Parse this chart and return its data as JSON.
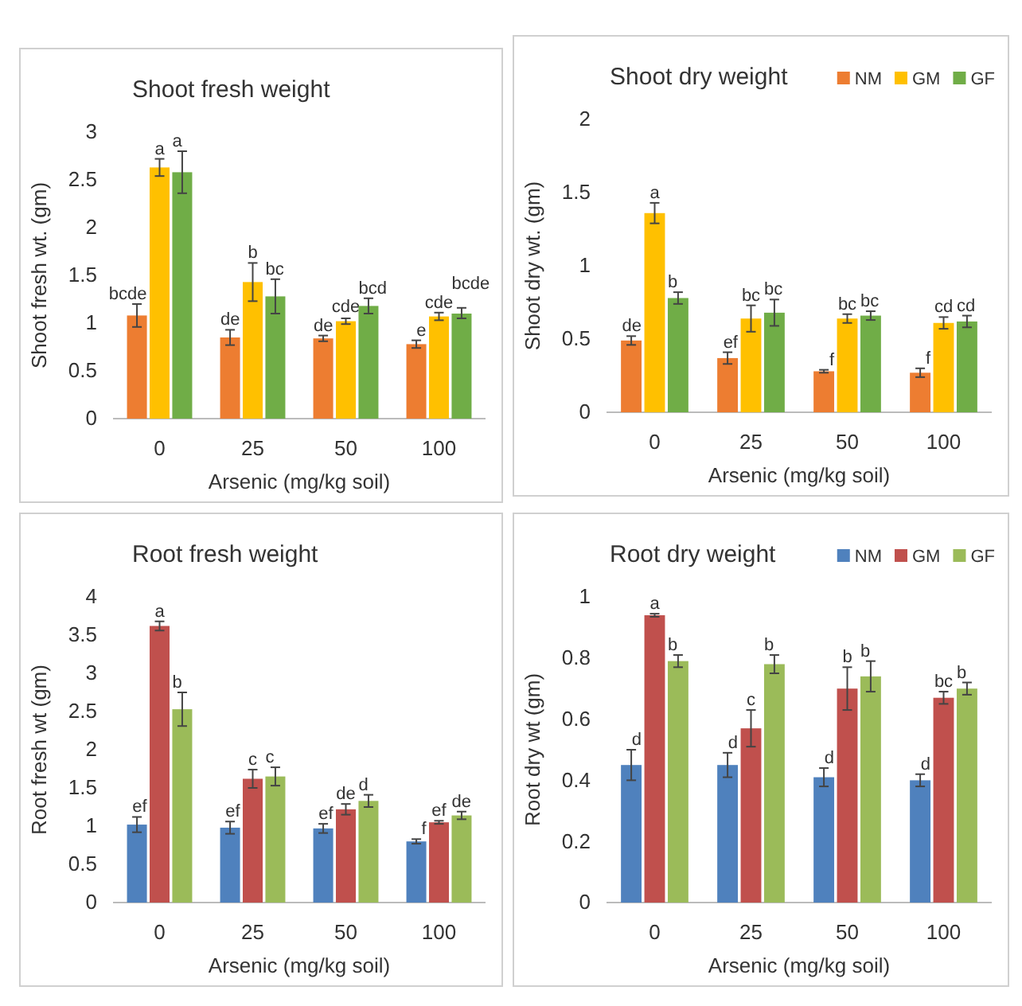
{
  "chart_data": [
    {
      "type": "bar",
      "title": "Shoot fresh weight",
      "xlabel": "Arsenic (mg/kg soil)",
      "ylabel": "Shoot fresh wt. (gm)",
      "categories": [
        "0",
        "25",
        "50",
        "100"
      ],
      "ylim": [
        0,
        3
      ],
      "yticks": [
        0,
        0.5,
        1,
        1.5,
        2,
        2.5,
        3
      ],
      "grid": false,
      "legend": false,
      "series": [
        {
          "color": "#ed7d31",
          "values": [
            1.08,
            0.85,
            0.84,
            0.78
          ],
          "errors": [
            0.12,
            0.08,
            0.03,
            0.04
          ],
          "value_labels": [
            "bcde",
            "de",
            "de",
            "e"
          ]
        },
        {
          "color": "#ffc000",
          "values": [
            2.63,
            1.43,
            1.02,
            1.07
          ],
          "errors": [
            0.09,
            0.2,
            0.03,
            0.04
          ],
          "value_labels": [
            "a",
            "b",
            "cde",
            "cde"
          ]
        },
        {
          "color": "#70ad47",
          "values": [
            2.58,
            1.28,
            1.18,
            1.1
          ],
          "errors": [
            0.22,
            0.18,
            0.08,
            [
              1.05,
              1.16
            ]
          ],
          "value_labels": [
            "a",
            "bc",
            "bcd",
            "bcde"
          ]
        }
      ]
    },
    {
      "type": "bar",
      "title": "Shoot dry weight",
      "xlabel": "Arsenic (mg/kg soil)",
      "ylabel": "Shoot dry wt. (gm)",
      "categories": [
        "0",
        "25",
        "50",
        "100"
      ],
      "ylim": [
        0,
        2
      ],
      "yticks": [
        0,
        0.5,
        1,
        1.5,
        2
      ],
      "grid": false,
      "legend": "top right",
      "series": [
        {
          "name": "NM",
          "color": "#ed7d31",
          "values": [
            0.49,
            0.37,
            0.28,
            0.27
          ],
          "errors": [
            0.03,
            0.04,
            0.01,
            0.03
          ],
          "value_labels": [
            "de",
            "ef",
            "f",
            "f"
          ]
        },
        {
          "name": "GM",
          "color": "#ffc000",
          "values": [
            1.36,
            0.64,
            0.64,
            0.61
          ],
          "errors": [
            0.07,
            0.09,
            0.03,
            0.04
          ],
          "value_labels": [
            "a",
            "bc",
            "bc",
            "cd"
          ]
        },
        {
          "name": "GF",
          "color": "#70ad47",
          "values": [
            0.78,
            0.68,
            0.66,
            0.62
          ],
          "errors": [
            0.04,
            0.09,
            0.03,
            0.04
          ],
          "value_labels": [
            "b",
            "bc",
            "bc",
            "cd"
          ]
        }
      ]
    },
    {
      "type": "bar",
      "title": "Root fresh weight",
      "xlabel": "Arsenic (mg/kg soil)",
      "ylabel": "Root fresh wt (gm)",
      "categories": [
        "0",
        "25",
        "50",
        "100"
      ],
      "ylim": [
        0,
        4
      ],
      "yticks": [
        0,
        0.5,
        1,
        1.5,
        2,
        2.5,
        3,
        3.5,
        4
      ],
      "grid": false,
      "legend": false,
      "series": [
        {
          "color": "#4f81bd",
          "values": [
            1.02,
            0.98,
            0.97,
            0.8
          ],
          "errors": [
            0.1,
            0.08,
            0.06,
            0.03
          ],
          "value_labels": [
            "ef",
            "ef",
            "ef",
            "f"
          ]
        },
        {
          "color": "#c0504d",
          "values": [
            3.62,
            1.62,
            1.22,
            1.05
          ],
          "errors": [
            0.06,
            0.12,
            0.07,
            0.02
          ],
          "value_labels": [
            "a",
            "c",
            "de",
            "ef"
          ]
        },
        {
          "color": "#9bbb59",
          "values": [
            2.53,
            1.65,
            1.33,
            1.14
          ],
          "errors": [
            0.22,
            0.12,
            0.08,
            0.05
          ],
          "value_labels": [
            "b",
            "c",
            "d",
            "de"
          ]
        }
      ]
    },
    {
      "type": "bar",
      "title": "Root dry weight",
      "xlabel": "Arsenic (mg/kg soil)",
      "ylabel": "Root dry wt (gm)",
      "categories": [
        "0",
        "25",
        "50",
        "100"
      ],
      "ylim": [
        0,
        1
      ],
      "yticks": [
        0,
        0.2,
        0.4,
        0.6,
        0.8,
        1
      ],
      "grid": false,
      "legend": "top right",
      "series": [
        {
          "name": "NM",
          "color": "#4f81bd",
          "values": [
            0.45,
            0.45,
            0.41,
            0.4
          ],
          "errors": [
            0.05,
            0.04,
            0.03,
            0.02
          ],
          "value_labels": [
            "d",
            "d",
            "d",
            "d"
          ]
        },
        {
          "name": "GM",
          "color": "#c0504d",
          "values": [
            0.94,
            0.57,
            0.7,
            0.67
          ],
          "errors": [
            0.005,
            0.06,
            0.07,
            0.02
          ],
          "value_labels": [
            "a",
            "c",
            "b",
            "bc"
          ]
        },
        {
          "name": "GF",
          "color": "#9bbb59",
          "values": [
            0.79,
            0.78,
            0.74,
            0.7
          ],
          "errors": [
            0.02,
            0.03,
            0.05,
            0.02
          ],
          "value_labels": [
            "b",
            "b",
            "b",
            "b"
          ]
        }
      ]
    }
  ]
}
